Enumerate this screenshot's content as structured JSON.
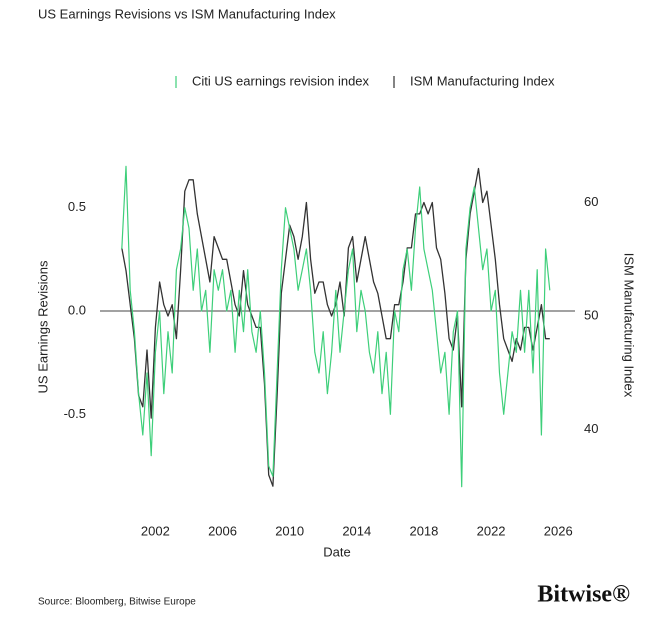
{
  "chart_data": {
    "type": "line",
    "title": "US Earnings Revisions vs ISM Manufacturing Index",
    "x_label": "Date",
    "y_label": "US Earnings Revisions",
    "y2_label": "ISM Manufacturing Index",
    "x": [
      2000,
      2000.25,
      2000.5,
      2000.75,
      2001,
      2001.25,
      2001.5,
      2001.75,
      2002,
      2002.25,
      2002.5,
      2002.75,
      2003,
      2003.25,
      2003.5,
      2003.75,
      2004,
      2004.25,
      2004.5,
      2004.75,
      2005,
      2005.25,
      2005.5,
      2005.75,
      2006,
      2006.25,
      2006.5,
      2006.75,
      2007,
      2007.25,
      2007.5,
      2007.75,
      2008,
      2008.25,
      2008.5,
      2008.75,
      2009,
      2009.25,
      2009.5,
      2009.75,
      2010,
      2010.25,
      2010.5,
      2010.75,
      2011,
      2011.25,
      2011.5,
      2011.75,
      2012,
      2012.25,
      2012.5,
      2012.75,
      2013,
      2013.25,
      2013.5,
      2013.75,
      2014,
      2014.25,
      2014.5,
      2014.75,
      2015,
      2015.25,
      2015.5,
      2015.75,
      2016,
      2016.25,
      2016.5,
      2016.75,
      2017,
      2017.25,
      2017.5,
      2017.75,
      2018,
      2018.25,
      2018.5,
      2018.75,
      2019,
      2019.25,
      2019.5,
      2019.75,
      2020,
      2020.25,
      2020.5,
      2020.75,
      2021,
      2021.25,
      2021.5,
      2021.75,
      2022,
      2022.25,
      2022.5,
      2022.75,
      2023,
      2023.25,
      2023.5,
      2023.75,
      2024,
      2024.25,
      2024.5,
      2024.75,
      2025,
      2025.25,
      2025.5
    ],
    "xlim": [
      1998.7,
      2027
    ],
    "xticks": [
      2002,
      2006,
      2010,
      2014,
      2018,
      2022,
      2026
    ],
    "ylim": [
      -0.9,
      0.75
    ],
    "yticks": [
      0.5,
      {
        "value": 0,
        "label": "0.0"
      },
      -0.5
    ],
    "y2lim": [
      34.05,
      64.1
    ],
    "y2ticks": [
      40,
      50,
      60
    ],
    "reference_line": 0,
    "legend": "top",
    "series": [
      {
        "name": "Citi US earnings revision index",
        "color": "#3ecf7a",
        "axis": "y",
        "values": [
          0.3,
          0.7,
          0.1,
          -0.1,
          -0.4,
          -0.6,
          -0.3,
          -0.7,
          -0.2,
          0.0,
          -0.4,
          -0.1,
          -0.3,
          0.2,
          0.3,
          0.5,
          0.4,
          0.1,
          0.3,
          0.0,
          0.1,
          -0.2,
          0.2,
          0.1,
          0.2,
          0.0,
          0.1,
          -0.2,
          0.1,
          -0.1,
          0.2,
          -0.1,
          -0.2,
          0.0,
          -0.3,
          -0.75,
          -0.8,
          -0.3,
          0.2,
          0.5,
          0.4,
          0.3,
          0.1,
          0.2,
          0.3,
          0.1,
          -0.2,
          -0.3,
          -0.1,
          -0.4,
          -0.2,
          0.1,
          -0.2,
          0.0,
          0.2,
          0.3,
          -0.1,
          0.1,
          0.0,
          -0.2,
          -0.3,
          -0.1,
          -0.4,
          -0.2,
          -0.5,
          0.0,
          -0.1,
          0.2,
          0.3,
          0.1,
          0.4,
          0.6,
          0.3,
          0.2,
          0.1,
          -0.1,
          -0.3,
          -0.2,
          -0.5,
          -0.1,
          0.0,
          -0.85,
          0.3,
          0.5,
          0.6,
          0.4,
          0.2,
          0.3,
          0.0,
          0.1,
          -0.3,
          -0.5,
          -0.3,
          -0.1,
          -0.2,
          0.1,
          -0.2,
          0.1,
          -0.3,
          0.2,
          -0.6,
          0.3,
          0.1
        ]
      },
      {
        "name": "ISM Manufacturing Index",
        "color": "#333333",
        "axis": "y2",
        "values": [
          56,
          54,
          51,
          48,
          43,
          42,
          47,
          41,
          49,
          53,
          51,
          50,
          51,
          48,
          54,
          61,
          62,
          62,
          59,
          57,
          55,
          53,
          57,
          56,
          55,
          55,
          53,
          51,
          50,
          54,
          51,
          50,
          49,
          49,
          44,
          36,
          35,
          43,
          52,
          55,
          58,
          57,
          55,
          57,
          60,
          55,
          52,
          53,
          53,
          51,
          50,
          51,
          53,
          50,
          56,
          57,
          53,
          55,
          57,
          55,
          53,
          52,
          50,
          48,
          48,
          51,
          51,
          53,
          56,
          56,
          59,
          59,
          60,
          59,
          60,
          56,
          55,
          52,
          48,
          47,
          50,
          42,
          55,
          59,
          61,
          63,
          60,
          61,
          58,
          55,
          51,
          48,
          47,
          46,
          48,
          47,
          49,
          49,
          47,
          49,
          51,
          48,
          48
        ]
      }
    ]
  },
  "source": "Source: Bloomberg, Bitwise Europe",
  "brand": "Bitwise®"
}
